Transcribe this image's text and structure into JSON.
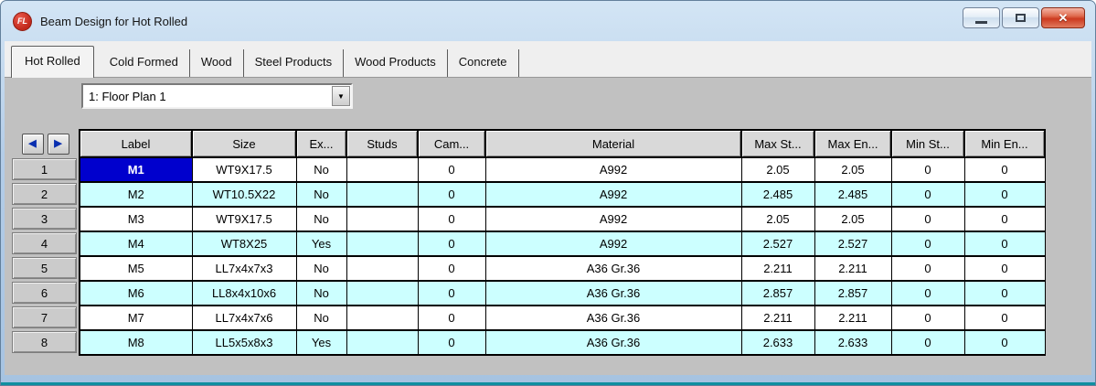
{
  "window": {
    "title": "Beam Design for Hot Rolled",
    "icon_text": "FL"
  },
  "icons": {
    "close": "✕",
    "dropdown": "▼",
    "nav_left": "◀",
    "nav_right": "▶"
  },
  "tabs": {
    "items": [
      {
        "label": "Hot Rolled",
        "active": true
      },
      {
        "label": "Cold Formed",
        "active": false
      },
      {
        "label": "Wood",
        "active": false
      },
      {
        "label": "Steel Products",
        "active": false
      },
      {
        "label": "Wood Products",
        "active": false
      },
      {
        "label": "Concrete",
        "active": false
      }
    ]
  },
  "floor_selector": {
    "value": "1: Floor Plan 1"
  },
  "grid": {
    "columns": [
      "Label",
      "Size",
      "Ex...",
      "Studs",
      "Cam...",
      "Material",
      "Max St...",
      "Max En...",
      "Min St...",
      "Min En..."
    ],
    "rows": [
      {
        "num": "1",
        "cells": [
          "M1",
          "WT9X17.5",
          "No",
          "",
          "0",
          "A992",
          "2.05",
          "2.05",
          "0",
          "0"
        ]
      },
      {
        "num": "2",
        "cells": [
          "M2",
          "WT10.5X22",
          "No",
          "",
          "0",
          "A992",
          "2.485",
          "2.485",
          "0",
          "0"
        ]
      },
      {
        "num": "3",
        "cells": [
          "M3",
          "WT9X17.5",
          "No",
          "",
          "0",
          "A992",
          "2.05",
          "2.05",
          "0",
          "0"
        ]
      },
      {
        "num": "4",
        "cells": [
          "M4",
          "WT8X25",
          "Yes",
          "",
          "0",
          "A992",
          "2.527",
          "2.527",
          "0",
          "0"
        ]
      },
      {
        "num": "5",
        "cells": [
          "M5",
          "LL7x4x7x3",
          "No",
          "",
          "0",
          "A36 Gr.36",
          "2.211",
          "2.211",
          "0",
          "0"
        ]
      },
      {
        "num": "6",
        "cells": [
          "M6",
          "LL8x4x10x6",
          "No",
          "",
          "0",
          "A36 Gr.36",
          "2.857",
          "2.857",
          "0",
          "0"
        ]
      },
      {
        "num": "7",
        "cells": [
          "M7",
          "LL7x4x7x6",
          "No",
          "",
          "0",
          "A36 Gr.36",
          "2.211",
          "2.211",
          "0",
          "0"
        ]
      },
      {
        "num": "8",
        "cells": [
          "M8",
          "LL5x5x8x3",
          "Yes",
          "",
          "0",
          "A36 Gr.36",
          "2.633",
          "2.633",
          "0",
          "0"
        ]
      }
    ],
    "selected_cell": {
      "row": "1",
      "column": "Label",
      "value": "M1"
    }
  },
  "colors": {
    "selected_cell_bg": "#0000CD",
    "row_alt_bg": "#CCFFFF",
    "header_bg": "#D9D9D9",
    "close_button": "#CC3A20",
    "titlebar_top": "#D3E5F5",
    "titlebar_bottom": "#A6C3E1"
  }
}
